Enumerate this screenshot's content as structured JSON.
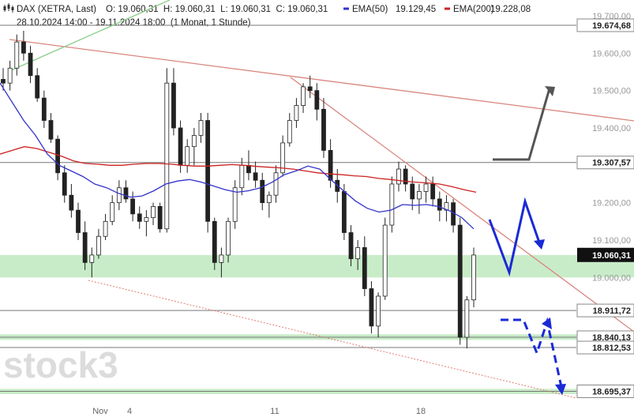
{
  "header": {
    "icon": "candlestick-chart-icon",
    "instrument": "DAX (XETRA, Last)",
    "ohlc": "O: 19.060,31  H: 19.060,31  L: 19.060,31  C: 19.060,31",
    "range": "28.10.2024 14:00 - 19.11.2024 18:00  (1 Monat, 1 Stunde)",
    "ema50_label": "EMA(50)",
    "ema50_value": "19.129,45",
    "ema200_label": "EMA(200)",
    "ema200_value": "19.228,08"
  },
  "watermark": "stock3",
  "colors": {
    "candle": "#222222",
    "ema50": "#3333cc",
    "ema200": "#cc2222",
    "trendline": "#d9867e",
    "support_zone": "#c8ecc8",
    "arrow_up": "#555555",
    "arrow_blue": "#1a2ad6",
    "last_price_bg": "#111111"
  },
  "chart_data": {
    "type": "candlestick",
    "ylim": [
      18660,
      19720
    ],
    "y_ticks": [
      "19.700,00",
      "19.600,00",
      "19.500,00",
      "19.400,00",
      "19.200,00",
      "19.100,00",
      "19.000,00"
    ],
    "x_ticks": [
      "Nov",
      "4",
      "11",
      "18"
    ],
    "levels": [
      {
        "label": "19.674,68",
        "value": 19674.68
      },
      {
        "label": "19.307,57",
        "value": 19307.57
      },
      {
        "label": "18.911,72",
        "value": 18911.72
      },
      {
        "label": "18.840,13",
        "value": 18840.13
      },
      {
        "label": "18.812,53",
        "value": 18812.53
      },
      {
        "label": "18.695,37",
        "value": 18695.37
      }
    ],
    "last_price": {
      "label": "19.060,31",
      "value": 19060.31
    },
    "ema50": [
      19520,
      19470,
      19420,
      19380,
      19330,
      19300,
      19285,
      19270,
      19250,
      19240,
      19225,
      19215,
      19218,
      19232,
      19250,
      19258,
      19262,
      19255,
      19245,
      19235,
      19228,
      19232,
      19240,
      19255,
      19275,
      19285,
      19298,
      19290,
      19260,
      19232,
      19205,
      19185,
      19175,
      19180,
      19195,
      19193,
      19195,
      19190,
      19178,
      19160,
      19130
    ],
    "ema200": [
      19330,
      19340,
      19350,
      19345,
      19335,
      19325,
      19312,
      19305,
      19303,
      19300,
      19300,
      19303,
      19305,
      19305,
      19303,
      19300,
      19298,
      19298,
      19300,
      19302,
      19300,
      19297,
      19295,
      19293,
      19290,
      19285,
      19280,
      19277,
      19275,
      19272,
      19270,
      19265,
      19262,
      19258,
      19255,
      19253,
      19250,
      19243,
      19235,
      19228
    ],
    "candles": [
      [
        19530,
        19560,
        19500,
        19520
      ],
      [
        19520,
        19580,
        19500,
        19560
      ],
      [
        19560,
        19650,
        19540,
        19630
      ],
      [
        19630,
        19660,
        19580,
        19600
      ],
      [
        19600,
        19620,
        19520,
        19540
      ],
      [
        19540,
        19560,
        19470,
        19480
      ],
      [
        19480,
        19500,
        19400,
        19420
      ],
      [
        19420,
        19440,
        19360,
        19370
      ],
      [
        19370,
        19380,
        19260,
        19280
      ],
      [
        19280,
        19300,
        19200,
        19220
      ],
      [
        19220,
        19250,
        19160,
        19180
      ],
      [
        19180,
        19200,
        19100,
        19120
      ],
      [
        19120,
        19150,
        19020,
        19040
      ],
      [
        19040,
        19080,
        19000,
        19060
      ],
      [
        19060,
        19130,
        19050,
        19110
      ],
      [
        19110,
        19170,
        19100,
        19150
      ],
      [
        19150,
        19220,
        19140,
        19200
      ],
      [
        19200,
        19260,
        19180,
        19240
      ],
      [
        19240,
        19260,
        19200,
        19210
      ],
      [
        19210,
        19230,
        19150,
        19170
      ],
      [
        19170,
        19190,
        19130,
        19150
      ],
      [
        19150,
        19180,
        19110,
        19160
      ],
      [
        19160,
        19200,
        19140,
        19190
      ],
      [
        19190,
        19200,
        19120,
        19130
      ],
      [
        19130,
        19560,
        19120,
        19520
      ],
      [
        19520,
        19560,
        19380,
        19400
      ],
      [
        19400,
        19420,
        19280,
        19300
      ],
      [
        19300,
        19370,
        19280,
        19350
      ],
      [
        19350,
        19400,
        19300,
        19380
      ],
      [
        19380,
        19440,
        19360,
        19420
      ],
      [
        19420,
        19440,
        19120,
        19150
      ],
      [
        19150,
        19160,
        19020,
        19040
      ],
      [
        19040,
        19080,
        19000,
        19060
      ],
      [
        19060,
        19160,
        19040,
        19150
      ],
      [
        19150,
        19260,
        19130,
        19240
      ],
      [
        19240,
        19320,
        19220,
        19300
      ],
      [
        19300,
        19340,
        19260,
        19280
      ],
      [
        19280,
        19310,
        19240,
        19260
      ],
      [
        19260,
        19280,
        19180,
        19200
      ],
      [
        19200,
        19230,
        19160,
        19220
      ],
      [
        19220,
        19300,
        19200,
        19280
      ],
      [
        19280,
        19380,
        19270,
        19360
      ],
      [
        19360,
        19440,
        19350,
        19420
      ],
      [
        19420,
        19480,
        19400,
        19460
      ],
      [
        19460,
        19520,
        19440,
        19510
      ],
      [
        19510,
        19540,
        19480,
        19500
      ],
      [
        19500,
        19520,
        19420,
        19450
      ],
      [
        19450,
        19480,
        19320,
        19340
      ],
      [
        19340,
        19370,
        19240,
        19260
      ],
      [
        19260,
        19290,
        19200,
        19230
      ],
      [
        19230,
        19250,
        19100,
        19120
      ],
      [
        19120,
        19140,
        19030,
        19050
      ],
      [
        19050,
        19100,
        19020,
        19080
      ],
      [
        19080,
        19110,
        18950,
        18970
      ],
      [
        18970,
        18990,
        18850,
        18870
      ],
      [
        18870,
        18960,
        18840,
        18950
      ],
      [
        18950,
        19160,
        18940,
        19140
      ],
      [
        19140,
        19270,
        19120,
        19250
      ],
      [
        19250,
        19310,
        19230,
        19290
      ],
      [
        19290,
        19300,
        19230,
        19250
      ],
      [
        19250,
        19270,
        19180,
        19210
      ],
      [
        19210,
        19250,
        19170,
        19230
      ],
      [
        19230,
        19270,
        19200,
        19250
      ],
      [
        19250,
        19270,
        19190,
        19210
      ],
      [
        19210,
        19230,
        19150,
        19180
      ],
      [
        19180,
        19220,
        19150,
        19200
      ],
      [
        19200,
        19210,
        19120,
        19140
      ],
      [
        19140,
        19160,
        18820,
        18840
      ],
      [
        18840,
        18950,
        18810,
        18940
      ],
      [
        18940,
        19080,
        18920,
        19060
      ]
    ]
  }
}
